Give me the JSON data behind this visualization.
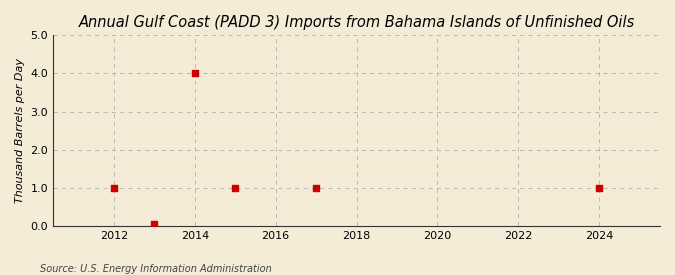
{
  "title": "Annual Gulf Coast (PADD 3) Imports from Bahama Islands of Unfinished Oils",
  "ylabel": "Thousand Barrels per Day",
  "source": "Source: U.S. Energy Information Administration",
  "background_color": "#f5ecd7",
  "plot_background_color": "#f5ecd7",
  "data_years": [
    2012,
    2013,
    2014,
    2015,
    2017,
    2024
  ],
  "data_values": [
    1.0,
    0.04,
    4.0,
    1.0,
    1.0,
    1.0
  ],
  "marker_color": "#cc0000",
  "marker_size": 4,
  "xlim": [
    2010.5,
    2025.5
  ],
  "ylim": [
    0.0,
    5.0
  ],
  "yticks": [
    0.0,
    1.0,
    2.0,
    3.0,
    4.0,
    5.0
  ],
  "xticks": [
    2012,
    2014,
    2016,
    2018,
    2020,
    2022,
    2024
  ],
  "grid_color": "#b0b0b0",
  "title_fontsize": 10.5,
  "label_fontsize": 8,
  "tick_fontsize": 8,
  "source_fontsize": 7
}
